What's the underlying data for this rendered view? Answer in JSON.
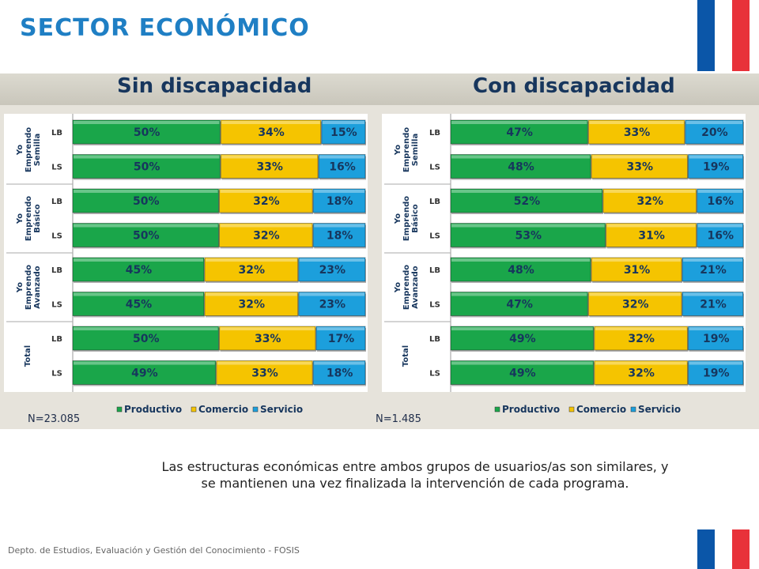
{
  "title": "SECTOR ECONÓMICO",
  "flag_colors": {
    "blue": "#0b56a8",
    "white": "#ffffff",
    "red": "#e8323a"
  },
  "colors": {
    "productivo": "#1aa64a",
    "comercio": "#f5c400",
    "servicio": "#1c9fdc"
  },
  "note": "Las estructuras económicas entre ambos grupos de usuarios/as son similares, y se mantienen una vez finalizada la intervención de cada programa.",
  "footer": "Depto. de Estudios, Evaluación y Gestión del Conocimiento - FOSIS",
  "chart_data": [
    {
      "type": "bar",
      "stacked": "100%",
      "orientation": "horizontal",
      "title": "Sin discapacidad",
      "n_label": "N=23.085",
      "legend": [
        "Productivo",
        "Comercio",
        "Servicio"
      ],
      "legend_position": "bottom",
      "groups": [
        {
          "label": [
            "Yo",
            "Emprendo",
            "Semilla"
          ],
          "rows": [
            {
              "label": "LB",
              "values": [
                50,
                34,
                15
              ]
            },
            {
              "label": "LS",
              "values": [
                50,
                33,
                16
              ]
            }
          ]
        },
        {
          "label": [
            "Yo",
            "Emprendo",
            "Básico"
          ],
          "rows": [
            {
              "label": "LB",
              "values": [
                50,
                32,
                18
              ]
            },
            {
              "label": "LS",
              "values": [
                50,
                32,
                18
              ]
            }
          ]
        },
        {
          "label": [
            "Yo",
            "Emprendo",
            "Avanzado"
          ],
          "rows": [
            {
              "label": "LB",
              "values": [
                45,
                32,
                23
              ]
            },
            {
              "label": "LS",
              "values": [
                45,
                32,
                23
              ]
            }
          ]
        },
        {
          "label": [
            "Total"
          ],
          "rows": [
            {
              "label": "LB",
              "values": [
                50,
                33,
                17
              ]
            },
            {
              "label": "LS",
              "values": [
                49,
                33,
                18
              ]
            }
          ]
        }
      ]
    },
    {
      "type": "bar",
      "stacked": "100%",
      "orientation": "horizontal",
      "title": "Con discapacidad",
      "n_label": "N=1.485",
      "legend": [
        "Productivo",
        "Comercio",
        "Servicio"
      ],
      "legend_position": "bottom",
      "groups": [
        {
          "label": [
            "Yo",
            "Emprendo",
            "Semilla"
          ],
          "rows": [
            {
              "label": "LB",
              "values": [
                47,
                33,
                20
              ]
            },
            {
              "label": "LS",
              "values": [
                48,
                33,
                19
              ]
            }
          ]
        },
        {
          "label": [
            "Yo",
            "Emprendo",
            "Básico"
          ],
          "rows": [
            {
              "label": "LB",
              "values": [
                52,
                32,
                16
              ]
            },
            {
              "label": "LS",
              "values": [
                53,
                31,
                16
              ]
            }
          ]
        },
        {
          "label": [
            "Yo",
            "Emprendo",
            "Avanzado"
          ],
          "rows": [
            {
              "label": "LB",
              "values": [
                48,
                31,
                21
              ]
            },
            {
              "label": "LS",
              "values": [
                47,
                32,
                21
              ]
            }
          ]
        },
        {
          "label": [
            "Total"
          ],
          "rows": [
            {
              "label": "LB",
              "values": [
                49,
                32,
                19
              ]
            },
            {
              "label": "LS",
              "values": [
                49,
                32,
                19
              ]
            }
          ]
        }
      ]
    }
  ]
}
